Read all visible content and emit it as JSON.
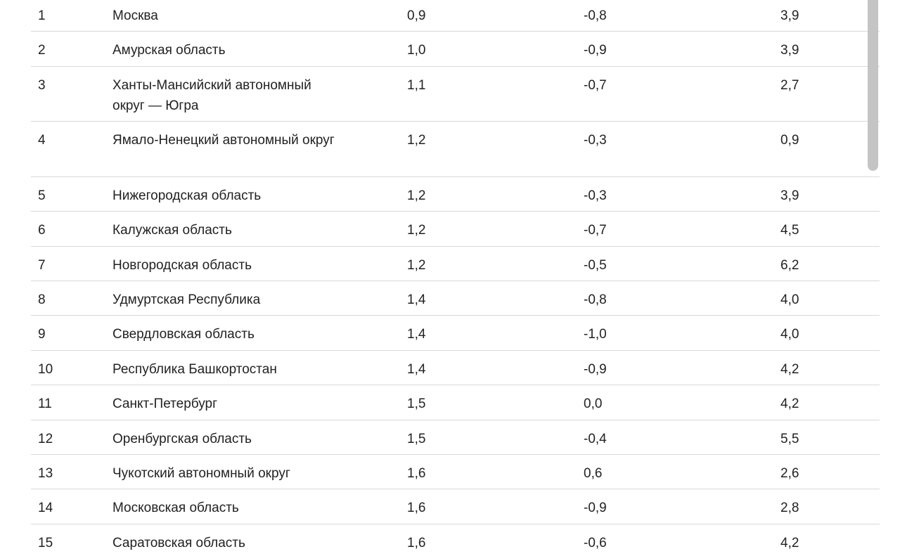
{
  "table": {
    "rows": [
      {
        "num": "1",
        "region": "Москва",
        "a": "0,9",
        "b": "-0,8",
        "c": "3,9"
      },
      {
        "num": "2",
        "region": "Амурская область",
        "a": "1,0",
        "b": "-0,9",
        "c": "3,9"
      },
      {
        "num": "3",
        "region": "Ханты-Мансийский автономный округ — Югра",
        "a": "1,1",
        "b": "-0,7",
        "c": "2,7"
      },
      {
        "num": "4",
        "region": "Ямало-Ненецкий автономный округ",
        "a": "1,2",
        "b": "-0,3",
        "c": "0,9"
      },
      {
        "num": "5",
        "region": "Нижегородская область",
        "a": "1,2",
        "b": "-0,3",
        "c": "3,9"
      },
      {
        "num": "6",
        "region": "Калужская область",
        "a": "1,2",
        "b": "-0,7",
        "c": "4,5"
      },
      {
        "num": "7",
        "region": "Новгородская область",
        "a": "1,2",
        "b": "-0,5",
        "c": "6,2"
      },
      {
        "num": "8",
        "region": "Удмуртская Республика",
        "a": "1,4",
        "b": "-0,8",
        "c": "4,0"
      },
      {
        "num": "9",
        "region": "Свердловская область",
        "a": "1,4",
        "b": "-1,0",
        "c": "4,0"
      },
      {
        "num": "10",
        "region": "Республика Башкортостан",
        "a": "1,4",
        "b": "-0,9",
        "c": "4,2"
      },
      {
        "num": "11",
        "region": "Санкт-Петербург",
        "a": "1,5",
        "b": "0,0",
        "c": "4,2"
      },
      {
        "num": "12",
        "region": "Оренбургская область",
        "a": "1,5",
        "b": "-0,4",
        "c": "5,5"
      },
      {
        "num": "13",
        "region": "Чукотский автономный округ",
        "a": "1,6",
        "b": "0,6",
        "c": "2,6"
      },
      {
        "num": "14",
        "region": "Московская область",
        "a": "1,6",
        "b": "-0,9",
        "c": "2,8"
      },
      {
        "num": "15",
        "region": "Саратовская область",
        "a": "1,6",
        "b": "-0,6",
        "c": "4,2"
      }
    ]
  }
}
